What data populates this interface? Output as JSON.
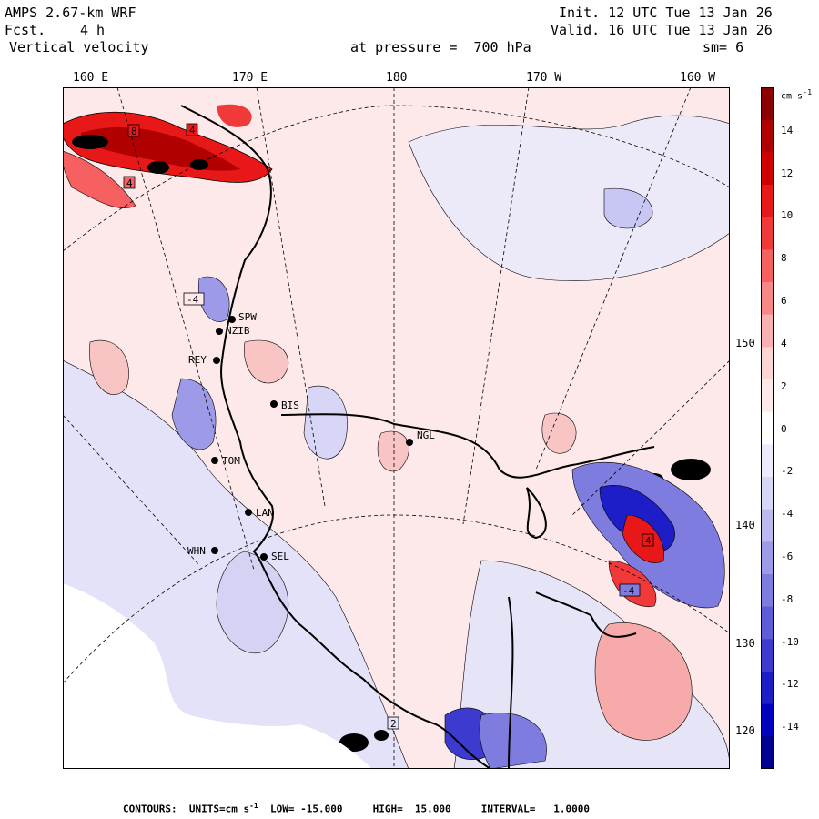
{
  "header": {
    "model": "AMPS 2.67-km WRF",
    "forecast_label": "Fcst.",
    "forecast_hours": "4 h",
    "field": "Vertical velocity",
    "init": "Init. 12 UTC Tue 13 Jan 26",
    "valid": "Valid. 16 UTC Tue 13 Jan 26",
    "pressure": "at pressure =  700 hPa",
    "smoothing": "sm= 6"
  },
  "longitude_labels": [
    "160 E",
    "170 E",
    "180",
    "170 W",
    "160 W"
  ],
  "latitude_labels": [
    "150 W",
    "140 W",
    "130 W",
    "120 W"
  ],
  "colorbar": {
    "units": "cm s",
    "units_exp": "-1",
    "ticks": [
      "14",
      "12",
      "10",
      "8",
      "6",
      "4",
      "2",
      "0",
      "-2",
      "-4",
      "-6",
      "-8",
      "-10",
      "-12",
      "-14"
    ],
    "colors": [
      "#8b0000",
      "#b00000",
      "#d10000",
      "#e81818",
      "#f03a3a",
      "#f66060",
      "#f88888",
      "#fab0b0",
      "#fcd4d4",
      "#fde9e9",
      "#ffffff",
      "#ecebfb",
      "#d7d6f6",
      "#bbb9ef",
      "#9d9ae8",
      "#7f7ce0",
      "#5f5cd8",
      "#3d3ad0",
      "#1e1ec8",
      "#0000c0",
      "#000090"
    ]
  },
  "stations": [
    {
      "code": "SPW"
    },
    {
      "code": "NZIB"
    },
    {
      "code": "REY"
    },
    {
      "code": "BIS"
    },
    {
      "code": "NGL"
    },
    {
      "code": "TOM"
    },
    {
      "code": "LAN"
    },
    {
      "code": "WHN"
    },
    {
      "code": "SEL"
    }
  ],
  "contour_labels": [
    "8",
    "4",
    "4",
    "-4",
    "4",
    "-4",
    "2"
  ],
  "footer": {
    "prefix": "CONTOURS:  UNITS=cm s",
    "exp": "-1",
    "low": "LOW= -15.000",
    "high": "HIGH=  15.000",
    "interval": "INTERVAL=   1.0000"
  }
}
